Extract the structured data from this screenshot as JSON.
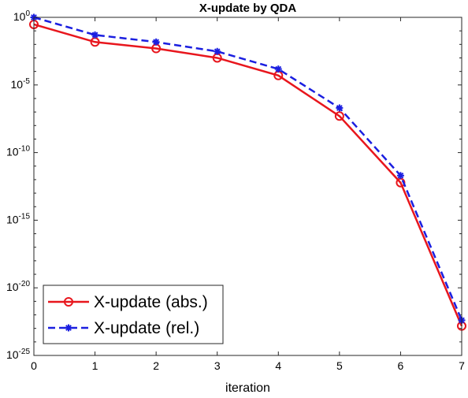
{
  "chart_data": {
    "type": "line",
    "title": "X-update by QDA",
    "xlabel": "iteration",
    "ylabel": "",
    "x": [
      0,
      1,
      2,
      3,
      4,
      5,
      6,
      7
    ],
    "xlim": [
      0,
      7
    ],
    "ylim": [
      1e-25,
      1
    ],
    "yscale": "log",
    "xticks": [
      "0",
      "1",
      "2",
      "3",
      "4",
      "5",
      "6",
      "7"
    ],
    "yticks": [
      {
        "base": "10",
        "exp": "0",
        "value": 1
      },
      {
        "base": "10",
        "exp": "-5",
        "value": 1e-05
      },
      {
        "base": "10",
        "exp": "-10",
        "value": 1e-10
      },
      {
        "base": "10",
        "exp": "-15",
        "value": 1e-15
      },
      {
        "base": "10",
        "exp": "-20",
        "value": 1e-20
      },
      {
        "base": "10",
        "exp": "-25",
        "value": 1e-25
      }
    ],
    "grid": false,
    "legend_position": "bottom-left",
    "series": [
      {
        "name": "X-update (abs.)",
        "values": [
          0.3,
          0.015,
          0.005,
          0.001,
          5e-05,
          5e-08,
          6e-13,
          1.5e-23
        ],
        "color": "#e8161d",
        "line": "solid",
        "marker": "circle"
      },
      {
        "name": "X-update (rel.)",
        "values": [
          1,
          0.05,
          0.015,
          0.003,
          0.00015,
          2e-07,
          2e-12,
          4e-23
        ],
        "color": "#1b1fe0",
        "line": "dashed",
        "marker": "asterisk"
      }
    ]
  }
}
